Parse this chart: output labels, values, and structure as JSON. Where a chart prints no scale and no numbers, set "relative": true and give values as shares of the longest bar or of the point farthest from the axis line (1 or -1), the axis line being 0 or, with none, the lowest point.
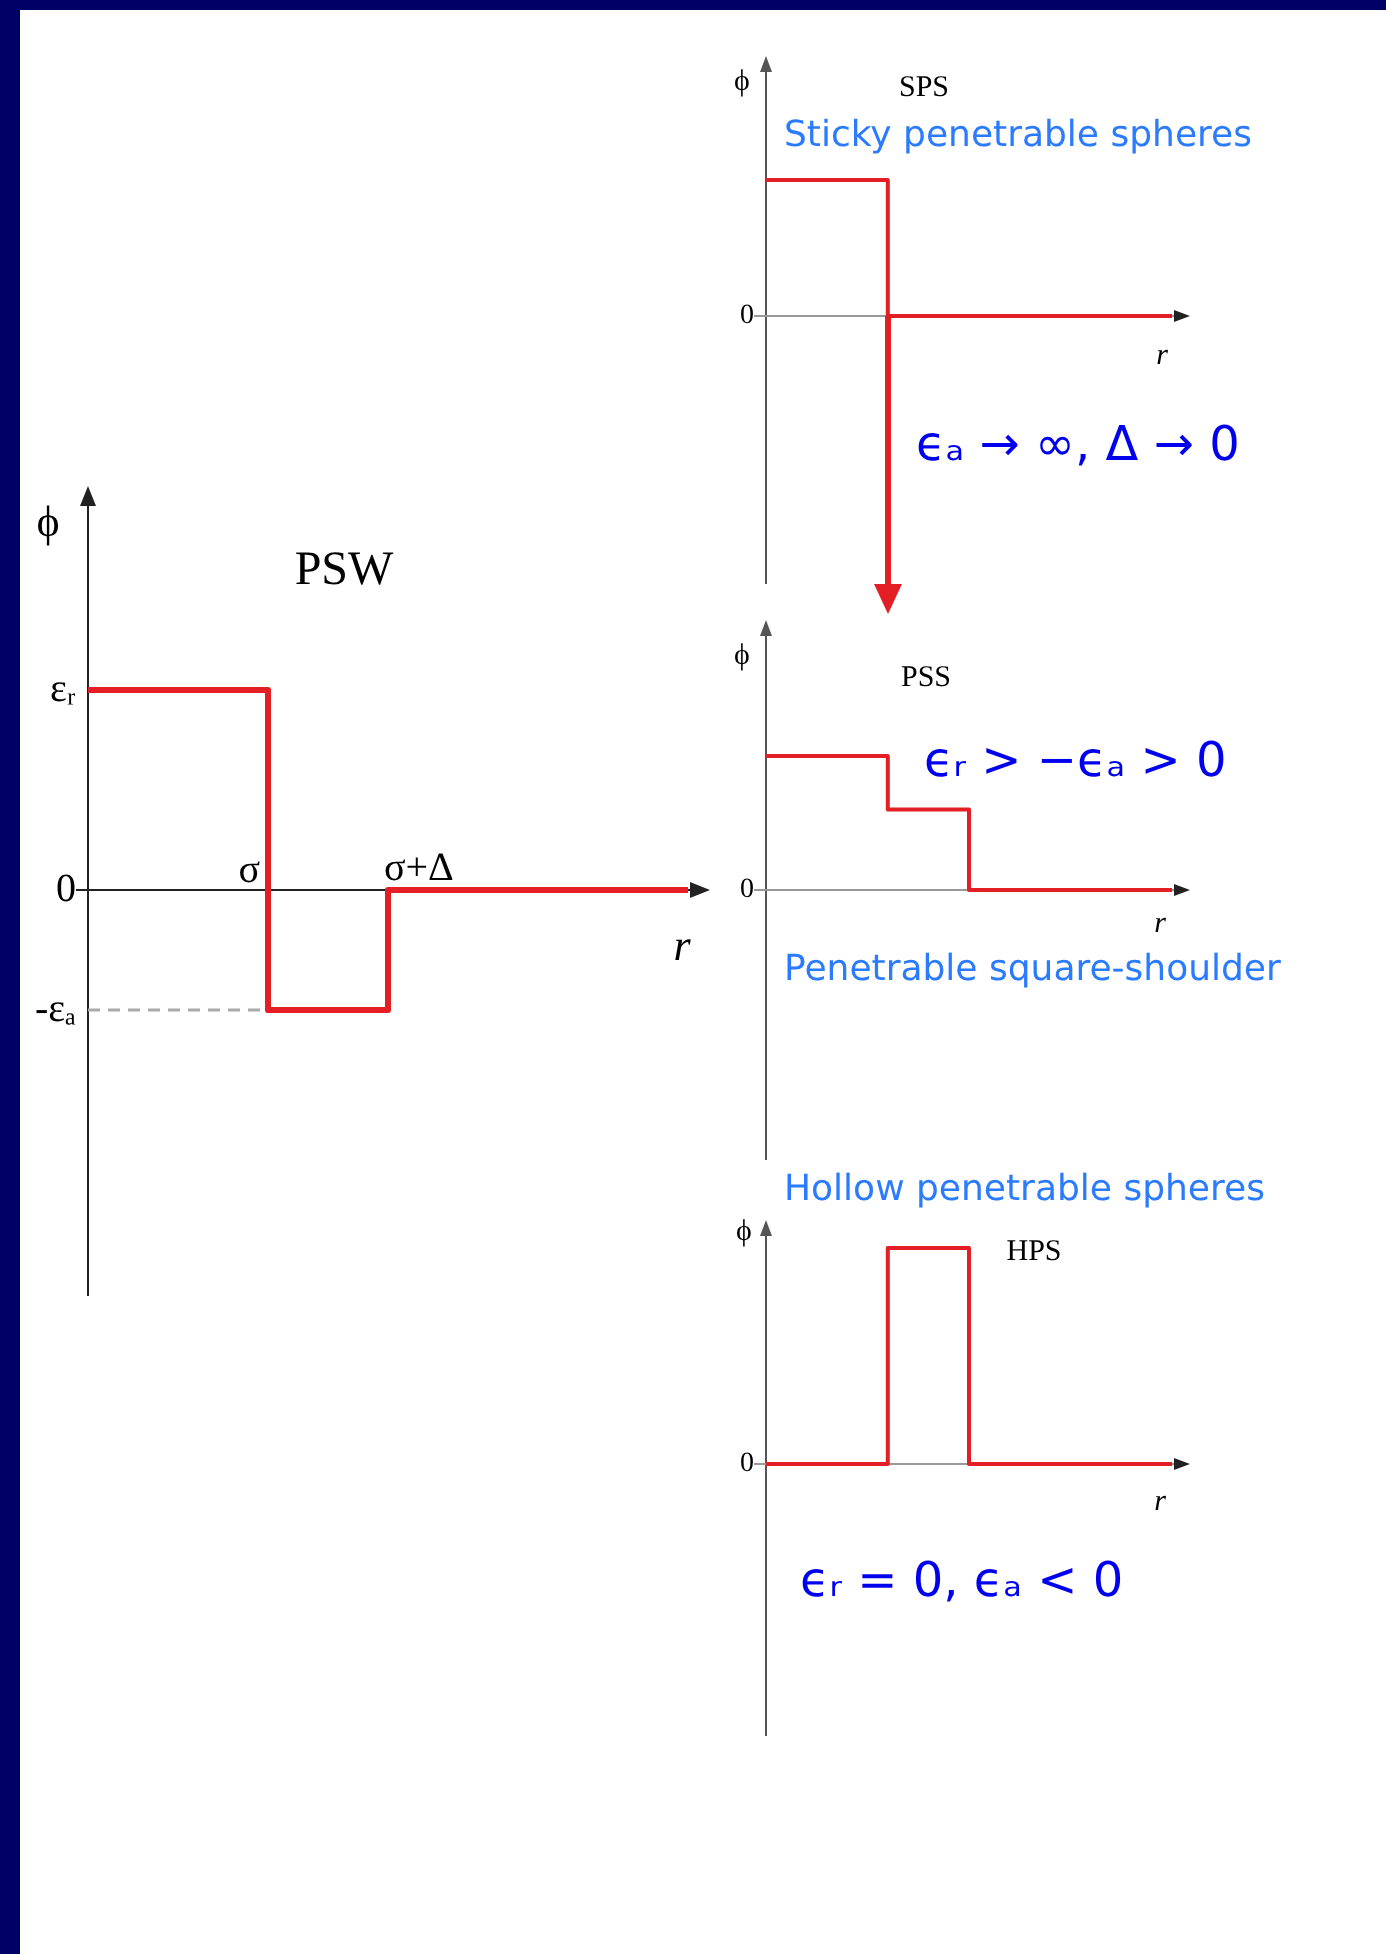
{
  "chart_data": [
    {
      "type": "step",
      "title": "PSW",
      "xlabel": "r",
      "ylabel": "ϕ",
      "relative": true,
      "categories": [
        null,
        null,
        null,
        null,
        null,
        null,
        null,
        null,
        null,
        null,
        null
      ],
      "series": [
        {
          "color": "#e31e24",
          "values": [
            1,
            1,
            1,
            -0.6,
            -0.6,
            0,
            0,
            0,
            0,
            0,
            0
          ]
        },
        {
          "name": "-εₐ",
          "type": "line",
          "color": "#aaaaaa",
          "line_style": "dashed",
          "values": [
            -0.6,
            -0.6,
            -0.6,
            -0.6,
            null,
            null,
            null,
            null,
            null,
            null,
            null
          ]
        }
      ],
      "annotations": [
        "εᵣ",
        "0",
        "σ",
        "σ+Δ"
      ]
    },
    {
      "type": "step",
      "title": "SPS",
      "subtitle": "Sticky penetrable spheres",
      "xlabel": "r",
      "ylabel": "ϕ",
      "relative": true,
      "categories": [
        null,
        null,
        null,
        null,
        null,
        null,
        null,
        null,
        null,
        null,
        null,
        null,
        null,
        null,
        null,
        null,
        null,
        null,
        null,
        null,
        null
      ],
      "values": [
        1,
        1,
        1,
        1,
        1,
        1,
        0,
        0,
        0,
        0,
        0,
        0,
        0,
        0,
        0,
        0,
        0,
        0,
        0,
        0,
        0
      ],
      "color": "#e31e24",
      "annotations": [
        "0",
        "ϵₐ → ∞, Δ → 0"
      ]
    },
    {
      "type": "step",
      "title": "PSS",
      "subtitle": "Penetrable square-shoulder",
      "xlabel": "r",
      "ylabel": "ϕ",
      "relative": true,
      "categories": [
        null,
        null,
        null,
        null,
        null,
        null,
        null,
        null,
        null,
        null,
        null,
        null,
        null,
        null,
        null,
        null,
        null,
        null,
        null,
        null,
        null
      ],
      "values": [
        1,
        1,
        1,
        1,
        1,
        1,
        0.6,
        0.6,
        0.6,
        0.6,
        0,
        0,
        0,
        0,
        0,
        0,
        0,
        0,
        0,
        0,
        0
      ],
      "color": "#e31e24",
      "annotations": [
        "0",
        "ϵᵣ > −ϵₐ > 0"
      ]
    },
    {
      "type": "step",
      "title": "HPS",
      "subtitle": "Hollow penetrable spheres",
      "xlabel": "r",
      "ylabel": "ϕ",
      "relative": true,
      "categories": [
        null,
        null,
        null,
        null,
        null,
        null,
        null,
        null,
        null,
        null,
        null,
        null,
        null,
        null,
        null,
        null,
        null,
        null,
        null,
        null,
        null
      ],
      "values": [
        0,
        0,
        0,
        0,
        0,
        0,
        1,
        1,
        1,
        1,
        0,
        0,
        0,
        0,
        0,
        0,
        0,
        0,
        0,
        0,
        0
      ],
      "color": "#e31e24",
      "annotations": [
        "0",
        "ϵᵣ = 0, ϵₐ < 0"
      ]
    }
  ]
}
